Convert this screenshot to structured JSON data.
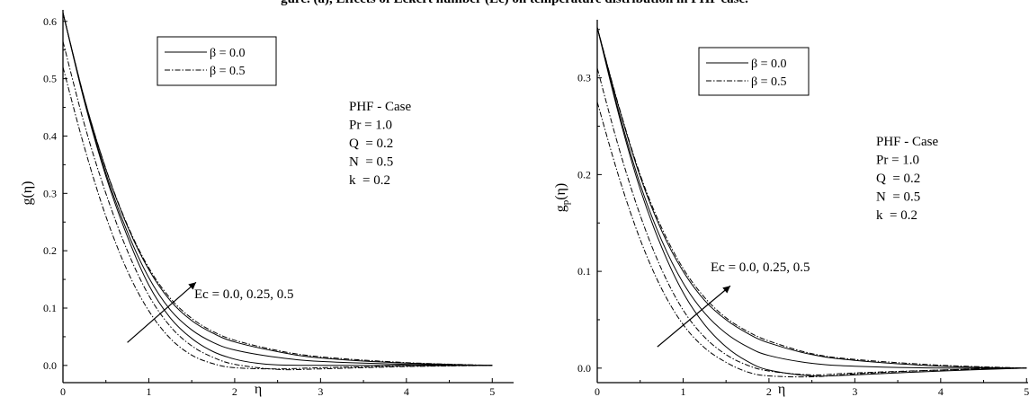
{
  "caption": "gure. (a), Effects of Eckert number (Ec) on temperature distribution in PHF case.",
  "chart_data": [
    {
      "type": "line",
      "xlabel": "η",
      "ylabel_base": "g",
      "ylabel_sub": "",
      "ylabel_arg": "(η)",
      "xlim": [
        0,
        5.5
      ],
      "ylim": [
        -0.03,
        0.62
      ],
      "xticks": [
        "0",
        "1",
        "2",
        "3",
        "4",
        "5"
      ],
      "yticks": [
        "0.0",
        "0.1",
        "0.2",
        "0.3",
        "0.4",
        "0.5",
        "0.6"
      ],
      "legend": [
        "β = 0.0",
        "β = 0.5"
      ],
      "params": [
        "PHF - Case",
        "Pr = 1.0",
        "Q  = 0.2",
        "N  = 0.5",
        "k  = 0.2"
      ],
      "annotation": "Ec = 0.0, 0.25, 0.5",
      "arrow": {
        "from": [
          0.75,
          0.04
        ],
        "to": [
          1.55,
          0.145
        ]
      },
      "series": [
        {
          "style": "solid",
          "values": [
            [
              0,
              0.615
            ],
            [
              0.25,
              0.46
            ],
            [
              0.5,
              0.33
            ],
            [
              0.75,
              0.225
            ],
            [
              1.0,
              0.14
            ],
            [
              1.25,
              0.083
            ],
            [
              1.5,
              0.047
            ],
            [
              1.75,
              0.024
            ],
            [
              2.0,
              0.011
            ],
            [
              2.25,
              0.004
            ],
            [
              2.5,
              0.001
            ],
            [
              3.0,
              0.0
            ],
            [
              4.0,
              0.0
            ],
            [
              5.0,
              0.0
            ]
          ]
        },
        {
          "style": "solid",
          "values": [
            [
              0,
              0.615
            ],
            [
              0.25,
              0.462
            ],
            [
              0.5,
              0.335
            ],
            [
              0.75,
              0.233
            ],
            [
              1.0,
              0.153
            ],
            [
              1.25,
              0.097
            ],
            [
              1.5,
              0.062
            ],
            [
              1.75,
              0.04
            ],
            [
              2.0,
              0.027
            ],
            [
              2.5,
              0.014
            ],
            [
              3.0,
              0.007
            ],
            [
              4.0,
              0.002
            ],
            [
              5.0,
              0.0
            ]
          ]
        },
        {
          "style": "solid",
          "values": [
            [
              0,
              0.615
            ],
            [
              0.25,
              0.465
            ],
            [
              0.5,
              0.342
            ],
            [
              0.75,
              0.243
            ],
            [
              1.0,
              0.167
            ],
            [
              1.25,
              0.113
            ],
            [
              1.5,
              0.078
            ],
            [
              1.75,
              0.056
            ],
            [
              2.0,
              0.041
            ],
            [
              2.5,
              0.024
            ],
            [
              3.0,
              0.013
            ],
            [
              4.0,
              0.004
            ],
            [
              5.0,
              0.0
            ]
          ]
        },
        {
          "style": "dashdot",
          "values": [
            [
              0,
              0.565
            ],
            [
              0.25,
              0.42
            ],
            [
              0.5,
              0.3
            ],
            [
              0.75,
              0.2
            ],
            [
              1.0,
              0.122
            ],
            [
              1.25,
              0.068
            ],
            [
              1.5,
              0.034
            ],
            [
              1.75,
              0.014
            ],
            [
              2.0,
              0.002
            ],
            [
              2.5,
              -0.007
            ],
            [
              3.0,
              -0.006
            ],
            [
              4.0,
              -0.002
            ],
            [
              5.0,
              0.0
            ]
          ]
        },
        {
          "style": "dashdot",
          "values": [
            [
              0,
              0.52
            ],
            [
              0.25,
              0.38
            ],
            [
              0.5,
              0.26
            ],
            [
              0.75,
              0.165
            ],
            [
              1.0,
              0.095
            ],
            [
              1.25,
              0.047
            ],
            [
              1.5,
              0.018
            ],
            [
              1.75,
              0.003
            ],
            [
              2.0,
              -0.004
            ],
            [
              2.5,
              -0.006
            ],
            [
              3.0,
              -0.004
            ],
            [
              4.0,
              -0.001
            ],
            [
              5.0,
              0.0
            ]
          ]
        },
        {
          "style": "dashdot",
          "values": [
            [
              0,
              0.615
            ],
            [
              0.25,
              0.465
            ],
            [
              0.5,
              0.343
            ],
            [
              0.75,
              0.245
            ],
            [
              1.0,
              0.17
            ],
            [
              1.25,
              0.117
            ],
            [
              1.5,
              0.082
            ],
            [
              1.75,
              0.059
            ],
            [
              2.0,
              0.044
            ],
            [
              2.5,
              0.026
            ],
            [
              3.0,
              0.015
            ],
            [
              4.0,
              0.005
            ],
            [
              5.0,
              0.0
            ]
          ]
        }
      ]
    },
    {
      "type": "line",
      "xlabel": "η",
      "ylabel_base": "g",
      "ylabel_sub": "p",
      "ylabel_arg": "(η)",
      "xlim": [
        0,
        5.5
      ],
      "ylim": [
        -0.015,
        0.36
      ],
      "xticks": [
        "0",
        "1",
        "2",
        "3",
        "4",
        "5"
      ],
      "yticks": [
        "0.0",
        "0.1",
        "0.2",
        "0.3"
      ],
      "legend": [
        "β = 0.0",
        "β = 0.5"
      ],
      "params": [
        "PHF - Case",
        "Pr = 1.0",
        "Q  = 0.2",
        "N  = 0.5",
        "k  = 0.2"
      ],
      "annotation": "Ec = 0.0, 0.25, 0.5",
      "arrow": {
        "from": [
          0.7,
          0.022
        ],
        "to": [
          1.55,
          0.085
        ]
      },
      "series": [
        {
          "style": "solid",
          "values": [
            [
              0,
              0.352
            ],
            [
              0.25,
              0.262
            ],
            [
              0.5,
              0.185
            ],
            [
              0.75,
              0.125
            ],
            [
              1.0,
              0.078
            ],
            [
              1.25,
              0.045
            ],
            [
              1.5,
              0.022
            ],
            [
              1.75,
              0.007
            ],
            [
              2.0,
              -0.002
            ],
            [
              2.5,
              -0.008
            ],
            [
              3.0,
              -0.007
            ],
            [
              4.0,
              -0.003
            ],
            [
              5.0,
              0.0
            ]
          ]
        },
        {
          "style": "solid",
          "values": [
            [
              0,
              0.352
            ],
            [
              0.25,
              0.265
            ],
            [
              0.5,
              0.19
            ],
            [
              0.75,
              0.132
            ],
            [
              1.0,
              0.088
            ],
            [
              1.25,
              0.057
            ],
            [
              1.5,
              0.036
            ],
            [
              1.75,
              0.022
            ],
            [
              2.0,
              0.013
            ],
            [
              2.5,
              0.005
            ],
            [
              3.0,
              0.002
            ],
            [
              4.0,
              0.0
            ],
            [
              5.0,
              0.0
            ]
          ]
        },
        {
          "style": "solid",
          "values": [
            [
              0,
              0.352
            ],
            [
              0.25,
              0.27
            ],
            [
              0.5,
              0.198
            ],
            [
              0.75,
              0.142
            ],
            [
              1.0,
              0.1
            ],
            [
              1.25,
              0.07
            ],
            [
              1.5,
              0.05
            ],
            [
              1.75,
              0.036
            ],
            [
              2.0,
              0.026
            ],
            [
              2.5,
              0.014
            ],
            [
              3.0,
              0.008
            ],
            [
              4.0,
              0.002
            ],
            [
              5.0,
              0.0
            ]
          ]
        },
        {
          "style": "dashdot",
          "values": [
            [
              0,
              0.31
            ],
            [
              0.25,
              0.228
            ],
            [
              0.5,
              0.158
            ],
            [
              0.75,
              0.102
            ],
            [
              1.0,
              0.06
            ],
            [
              1.25,
              0.032
            ],
            [
              1.5,
              0.014
            ],
            [
              1.75,
              0.003
            ],
            [
              2.0,
              -0.003
            ],
            [
              2.5,
              -0.007
            ],
            [
              3.0,
              -0.005
            ],
            [
              4.0,
              -0.002
            ],
            [
              5.0,
              0.0
            ]
          ]
        },
        {
          "style": "dashdot",
          "values": [
            [
              0,
              0.275
            ],
            [
              0.25,
              0.198
            ],
            [
              0.5,
              0.133
            ],
            [
              0.75,
              0.082
            ],
            [
              1.0,
              0.045
            ],
            [
              1.25,
              0.021
            ],
            [
              1.5,
              0.006
            ],
            [
              1.75,
              -0.004
            ],
            [
              2.0,
              -0.008
            ],
            [
              2.5,
              -0.009
            ],
            [
              3.0,
              -0.006
            ],
            [
              4.0,
              -0.002
            ],
            [
              5.0,
              0.0
            ]
          ]
        },
        {
          "style": "dashdot",
          "values": [
            [
              0,
              0.352
            ],
            [
              0.25,
              0.271
            ],
            [
              0.5,
              0.2
            ],
            [
              0.75,
              0.145
            ],
            [
              1.0,
              0.103
            ],
            [
              1.25,
              0.073
            ],
            [
              1.5,
              0.052
            ],
            [
              1.75,
              0.038
            ],
            [
              2.0,
              0.028
            ],
            [
              2.5,
              0.015
            ],
            [
              3.0,
              0.009
            ],
            [
              4.0,
              0.003
            ],
            [
              5.0,
              0.0
            ]
          ]
        }
      ]
    }
  ]
}
